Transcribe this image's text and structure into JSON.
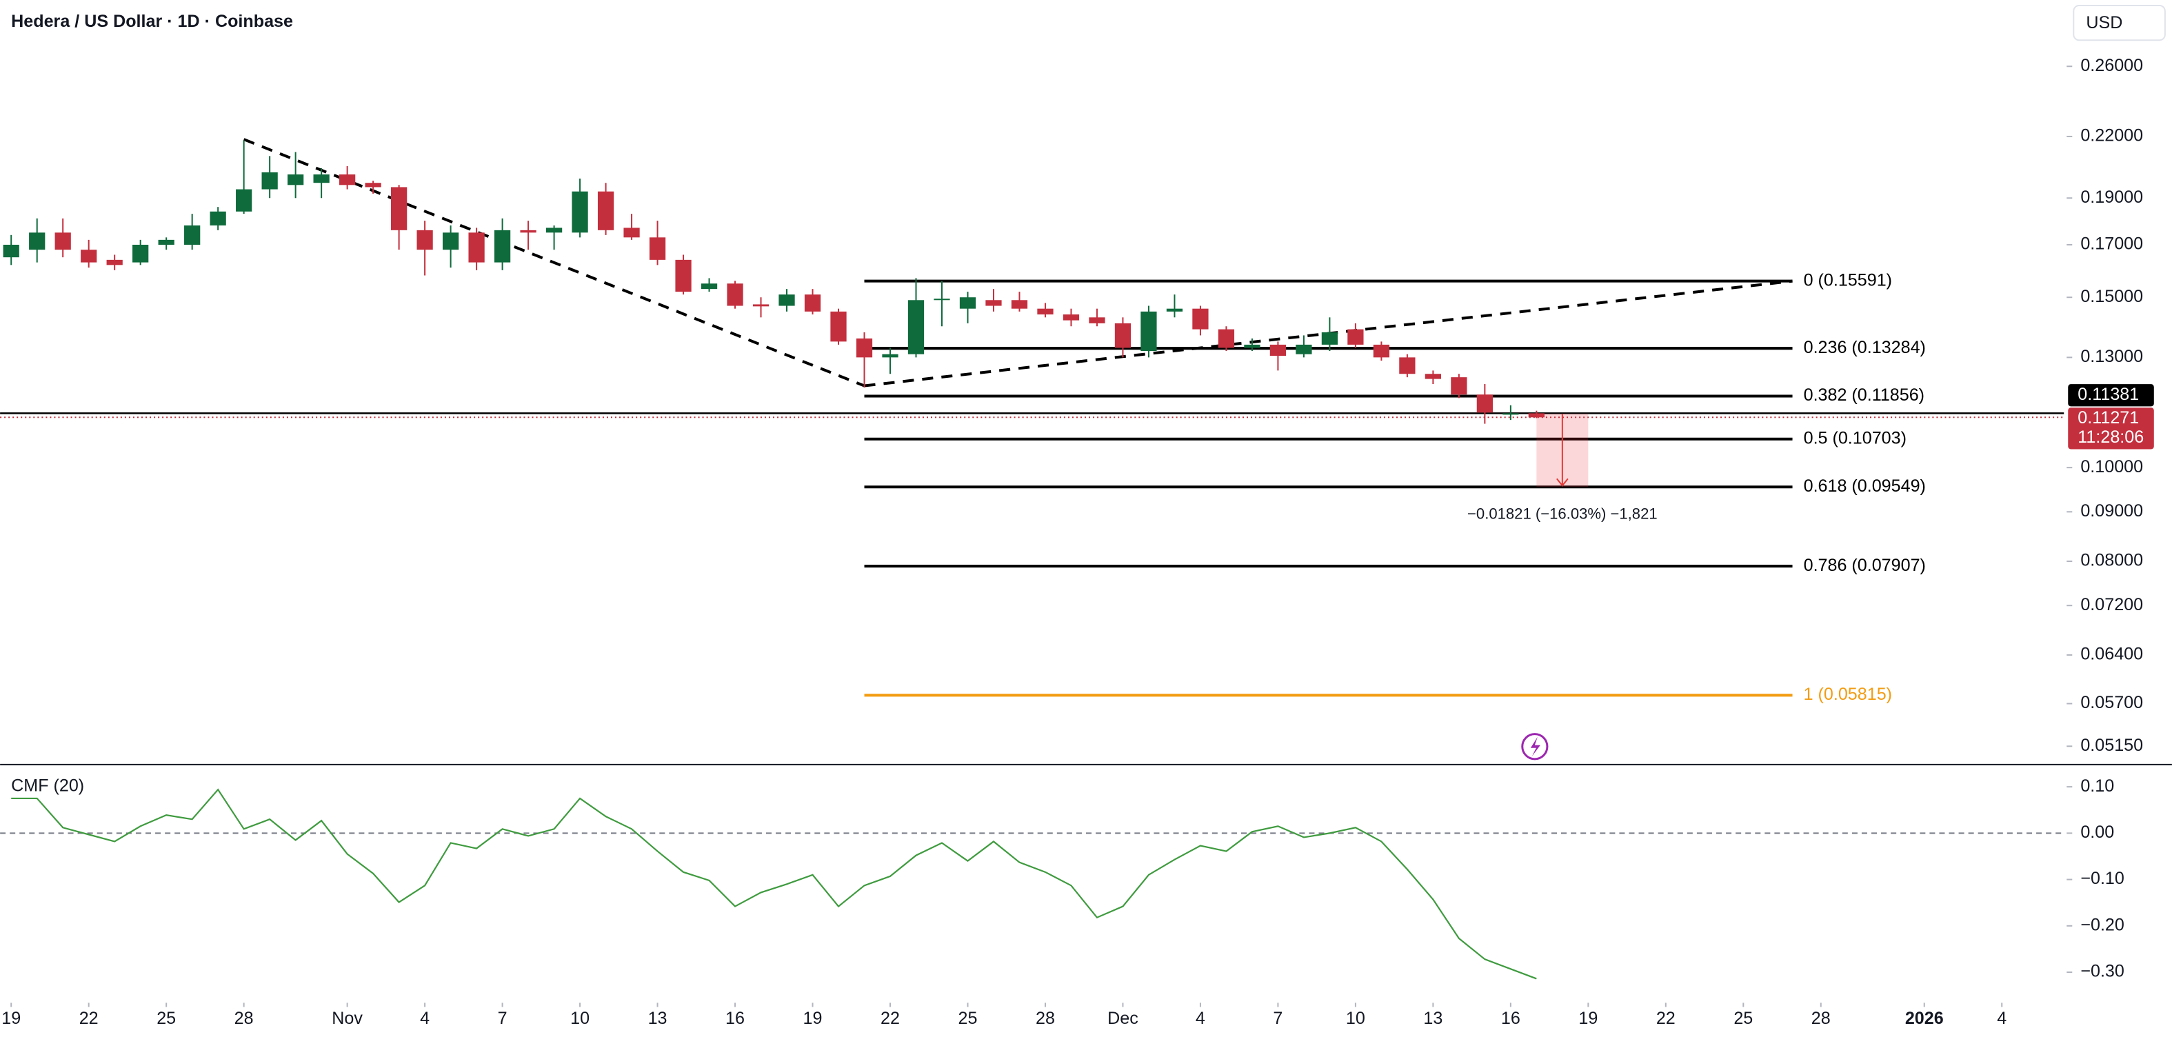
{
  "header": {
    "title": "Hedera / US Dollar · 1D · Coinbase",
    "currency": "USD"
  },
  "chart_data": [
    {
      "type": "candlestick",
      "x": [
        0,
        1,
        2,
        3,
        4,
        5,
        6,
        7,
        8,
        9,
        10,
        11,
        12,
        13,
        14,
        15,
        16,
        17,
        18,
        19,
        20,
        21,
        22,
        23,
        24,
        25,
        26,
        27,
        28,
        29,
        30,
        31,
        32,
        33,
        34,
        35,
        36,
        37,
        38,
        39,
        40,
        41,
        42,
        43,
        44,
        45,
        46,
        47,
        48,
        49,
        50,
        51,
        52,
        53,
        54,
        55,
        56,
        57,
        58,
        59
      ],
      "open": [
        0.165,
        0.168,
        0.175,
        0.168,
        0.164,
        0.163,
        0.17,
        0.17,
        0.178,
        0.184,
        0.194,
        0.196,
        0.197,
        0.201,
        0.197,
        0.195,
        0.176,
        0.168,
        0.175,
        0.163,
        0.176,
        0.175,
        0.175,
        0.193,
        0.177,
        0.173,
        0.164,
        0.153,
        0.155,
        0.1475,
        0.147,
        0.151,
        0.145,
        0.136,
        0.13,
        0.131,
        0.149,
        0.146,
        0.149,
        0.149,
        0.146,
        0.144,
        0.143,
        0.141,
        0.132,
        0.145,
        0.146,
        0.139,
        0.133,
        0.134,
        0.131,
        0.134,
        0.139,
        0.134,
        0.13,
        0.125,
        0.124,
        0.119,
        0.1135,
        0.1138
      ],
      "high": [
        0.174,
        0.181,
        0.181,
        0.172,
        0.166,
        0.172,
        0.173,
        0.183,
        0.186,
        0.218,
        0.21,
        0.212,
        0.204,
        0.205,
        0.198,
        0.196,
        0.18,
        0.178,
        0.177,
        0.181,
        0.18,
        0.178,
        0.199,
        0.197,
        0.183,
        0.18,
        0.166,
        0.157,
        0.156,
        0.15,
        0.153,
        0.153,
        0.146,
        0.138,
        0.133,
        0.157,
        0.156,
        0.152,
        0.153,
        0.152,
        0.148,
        0.146,
        0.146,
        0.143,
        0.147,
        0.151,
        0.147,
        0.14,
        0.136,
        0.135,
        0.137,
        0.143,
        0.141,
        0.135,
        0.131,
        0.126,
        0.125,
        0.122,
        0.116,
        0.1145
      ],
      "low": [
        0.162,
        0.163,
        0.165,
        0.161,
        0.16,
        0.162,
        0.168,
        0.168,
        0.176,
        0.183,
        0.19,
        0.19,
        0.19,
        0.194,
        0.192,
        0.168,
        0.158,
        0.161,
        0.16,
        0.16,
        0.168,
        0.168,
        0.173,
        0.174,
        0.172,
        0.162,
        0.151,
        0.152,
        0.146,
        0.143,
        0.145,
        0.144,
        0.134,
        0.121,
        0.125,
        0.13,
        0.14,
        0.141,
        0.145,
        0.145,
        0.143,
        0.14,
        0.14,
        0.13,
        0.13,
        0.143,
        0.137,
        0.132,
        0.132,
        0.126,
        0.13,
        0.132,
        0.133,
        0.129,
        0.124,
        0.122,
        0.118,
        0.111,
        0.112,
        0.1125
      ],
      "close": [
        0.17,
        0.175,
        0.168,
        0.163,
        0.162,
        0.17,
        0.172,
        0.178,
        0.184,
        0.194,
        0.202,
        0.201,
        0.201,
        0.196,
        0.195,
        0.176,
        0.168,
        0.175,
        0.163,
        0.176,
        0.175,
        0.177,
        0.193,
        0.176,
        0.173,
        0.164,
        0.152,
        0.155,
        0.147,
        0.1468,
        0.151,
        0.145,
        0.135,
        0.13,
        0.131,
        0.149,
        0.1495,
        0.15,
        0.147,
        0.146,
        0.144,
        0.142,
        0.141,
        0.133,
        0.145,
        0.146,
        0.139,
        0.133,
        0.134,
        0.1305,
        0.134,
        0.138,
        0.134,
        0.13,
        0.125,
        0.1235,
        0.119,
        0.114,
        0.1138,
        0.11271
      ],
      "up_color": "#0f6b3c",
      "down_color": "#c42f3e",
      "log_scale": true,
      "xlim": [
        -0.43,
        79.4
      ],
      "ylim": [
        0.0493,
        0.3045
      ],
      "yticks": [
        {
          "value": 0.26,
          "label": "0.26000"
        },
        {
          "value": 0.22,
          "label": "0.22000"
        },
        {
          "value": 0.19,
          "label": "0.19000"
        },
        {
          "value": 0.17,
          "label": "0.17000"
        },
        {
          "value": 0.15,
          "label": "0.15000"
        },
        {
          "value": 0.13,
          "label": "0.13000"
        },
        {
          "value": 0.1,
          "label": "0.10000"
        },
        {
          "value": 0.09,
          "label": "0.09000"
        },
        {
          "value": 0.08,
          "label": "0.08000"
        },
        {
          "value": 0.072,
          "label": "0.07200"
        },
        {
          "value": 0.064,
          "label": "0.06400"
        },
        {
          "value": 0.057,
          "label": "0.05700"
        },
        {
          "value": 0.0515,
          "label": "0.05150"
        }
      ],
      "fib_levels": [
        {
          "label": "0 (0.15591)",
          "value": 0.15591,
          "color": "#000000"
        },
        {
          "label": "0.236 (0.13284)",
          "value": 0.13284,
          "color": "#000000"
        },
        {
          "label": "0.382 (0.11856)",
          "value": 0.11856,
          "color": "#000000"
        },
        {
          "label": "0.5 (0.10703)",
          "value": 0.10703,
          "color": "#000000"
        },
        {
          "label": "0.618 (0.09549)",
          "value": 0.09549,
          "color": "#000000"
        },
        {
          "label": "0.786 (0.07907)",
          "value": 0.07907,
          "color": "#000000"
        },
        {
          "label": "1 (0.05815)",
          "value": 0.05815,
          "color": "#f39c12"
        }
      ],
      "fib_x": [
        33,
        68.9
      ],
      "trendlines": [
        {
          "x": [
            9,
            33
          ],
          "y": [
            0.2185,
            0.1215
          ]
        },
        {
          "x": [
            33,
            68.9
          ],
          "y": [
            0.1215,
            0.15591
          ]
        }
      ],
      "measure": {
        "label": "−0.01821 (−16.03%) −1,821",
        "x": [
          59,
          61
        ],
        "y": [
          0.1137,
          0.09549
        ]
      },
      "price_lines": [
        {
          "value": 0.11381,
          "color": "#000000"
        },
        {
          "value": 0.11271,
          "color": "#c42f3e"
        }
      ],
      "countdown": "11:28:06"
    },
    {
      "type": "line",
      "title": "CMF (20)",
      "x": [
        0,
        1,
        2,
        3,
        4,
        5,
        6,
        7,
        8,
        9,
        10,
        11,
        12,
        13,
        14,
        15,
        16,
        17,
        18,
        19,
        20,
        21,
        22,
        23,
        24,
        25,
        26,
        27,
        28,
        29,
        30,
        31,
        32,
        33,
        34,
        35,
        36,
        37,
        38,
        39,
        40,
        41,
        42,
        43,
        44,
        45,
        46,
        47,
        48,
        49,
        50,
        51,
        52,
        53,
        54,
        55,
        56,
        57,
        58,
        59
      ],
      "values": [
        0.075,
        0.075,
        0.012,
        -0.003,
        -0.018,
        0.015,
        0.039,
        0.03,
        0.094,
        0.009,
        0.03,
        -0.015,
        0.027,
        -0.045,
        -0.087,
        -0.149,
        -0.113,
        -0.021,
        -0.033,
        0.009,
        -0.006,
        0.009,
        0.075,
        0.036,
        0.009,
        -0.039,
        -0.084,
        -0.102,
        -0.158,
        -0.128,
        -0.11,
        -0.09,
        -0.158,
        -0.113,
        -0.093,
        -0.048,
        -0.021,
        -0.06,
        -0.018,
        -0.063,
        -0.084,
        -0.113,
        -0.182,
        -0.158,
        -0.09,
        -0.057,
        -0.027,
        -0.039,
        0.003,
        0.015,
        -0.009,
        0,
        0.012,
        -0.018,
        -0.078,
        -0.143,
        -0.227,
        -0.272,
        -0.293,
        -0.314
      ],
      "color": "#3f9b3f",
      "zero_line": 0,
      "xlim": [
        -0.43,
        79.4
      ],
      "ylim": [
        -0.36,
        0.148
      ],
      "yticks": [
        {
          "value": 0.1,
          "label": "0.10"
        },
        {
          "value": 0,
          "label": "0.00"
        },
        {
          "value": -0.1,
          "label": "−0.10"
        },
        {
          "value": -0.2,
          "label": "−0.20"
        },
        {
          "value": -0.3,
          "label": "−0.30"
        }
      ],
      "xticks": [
        {
          "value": 0,
          "label": "19"
        },
        {
          "value": 3,
          "label": "22"
        },
        {
          "value": 6,
          "label": "25"
        },
        {
          "value": 9,
          "label": "28"
        },
        {
          "value": 13,
          "label": "Nov"
        },
        {
          "value": 16,
          "label": "4"
        },
        {
          "value": 19,
          "label": "7"
        },
        {
          "value": 22,
          "label": "10"
        },
        {
          "value": 25,
          "label": "13"
        },
        {
          "value": 28,
          "label": "16"
        },
        {
          "value": 31,
          "label": "19"
        },
        {
          "value": 34,
          "label": "22"
        },
        {
          "value": 37,
          "label": "25"
        },
        {
          "value": 40,
          "label": "28"
        },
        {
          "value": 43,
          "label": "Dec"
        },
        {
          "value": 46,
          "label": "4"
        },
        {
          "value": 49,
          "label": "7"
        },
        {
          "value": 52,
          "label": "10"
        },
        {
          "value": 55,
          "label": "13"
        },
        {
          "value": 58,
          "label": "16"
        },
        {
          "value": 61,
          "label": "19"
        },
        {
          "value": 64,
          "label": "22"
        },
        {
          "value": 67,
          "label": "25"
        },
        {
          "value": 70,
          "label": "28"
        },
        {
          "value": 74,
          "label": "2026"
        },
        {
          "value": 77,
          "label": "4"
        }
      ]
    }
  ]
}
